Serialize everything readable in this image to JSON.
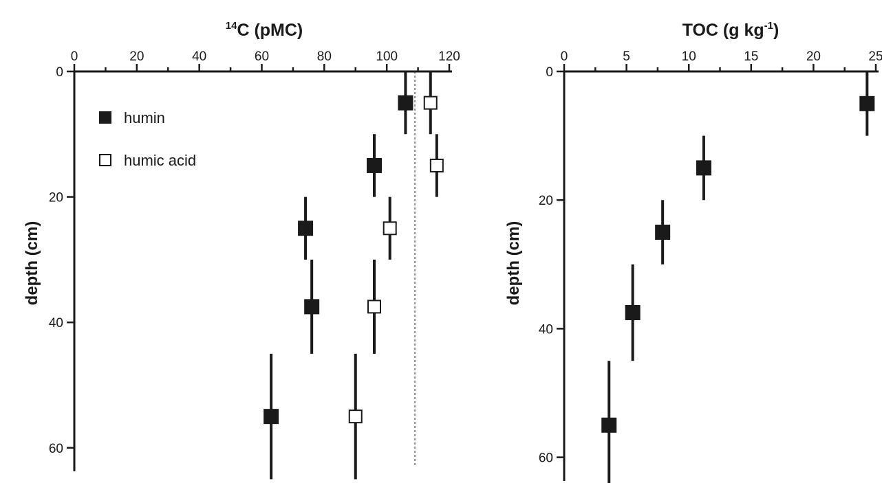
{
  "chart_data": [
    {
      "type": "scatter",
      "title": {
        "main": "C (pMC)",
        "sup": "14"
      },
      "xlabel": "",
      "ylabel": "depth (cm)",
      "x_axis_position": "top",
      "y_axis_inverted": true,
      "xlim": [
        0,
        120
      ],
      "ylim": [
        0,
        65
      ],
      "xticks": [
        0,
        20,
        40,
        60,
        80,
        100,
        120
      ],
      "yticks": [
        0,
        20,
        40,
        60
      ],
      "reference_line_x": 109,
      "legend": {
        "placement": "top-left",
        "items": [
          "humin",
          "humic acid"
        ]
      },
      "series": [
        {
          "name": "humin",
          "marker": "filled-square",
          "points": [
            {
              "x": 106,
              "y": 5,
              "y_err": [
                0,
                10
              ]
            },
            {
              "x": 96,
              "y": 15,
              "y_err": [
                10,
                20
              ]
            },
            {
              "x": 74,
              "y": 25,
              "y_err": [
                20,
                30
              ]
            },
            {
              "x": 76,
              "y": 37.5,
              "y_err": [
                30,
                45
              ]
            },
            {
              "x": 63,
              "y": 55,
              "y_err": [
                45,
                65
              ]
            }
          ]
        },
        {
          "name": "humic acid",
          "marker": "open-square",
          "points": [
            {
              "x": 114,
              "y": 5,
              "y_err": [
                0,
                10
              ]
            },
            {
              "x": 116,
              "y": 15,
              "y_err": [
                10,
                20
              ]
            },
            {
              "x": 101,
              "y": 25,
              "y_err": [
                20,
                30
              ]
            },
            {
              "x": 96,
              "y": 37.5,
              "y_err": [
                30,
                45
              ]
            },
            {
              "x": 90,
              "y": 55,
              "y_err": [
                45,
                65
              ]
            }
          ]
        }
      ]
    },
    {
      "type": "scatter",
      "title": {
        "main": "TOC (g kg",
        "sup": "-1",
        "tail": ")"
      },
      "xlabel": "",
      "ylabel": "depth (cm)",
      "x_axis_position": "top",
      "y_axis_inverted": true,
      "xlim": [
        0,
        25
      ],
      "ylim": [
        0,
        65
      ],
      "xticks": [
        0,
        5,
        10,
        15,
        20,
        25
      ],
      "yticks": [
        0,
        20,
        40,
        60
      ],
      "series": [
        {
          "name": "TOC",
          "marker": "filled-square",
          "points": [
            {
              "x": 24.3,
              "y": 5,
              "y_err": [
                0,
                10
              ]
            },
            {
              "x": 11.2,
              "y": 15,
              "y_err": [
                10,
                20
              ]
            },
            {
              "x": 7.9,
              "y": 25,
              "y_err": [
                20,
                30
              ]
            },
            {
              "x": 5.5,
              "y": 37.5,
              "y_err": [
                30,
                45
              ]
            },
            {
              "x": 3.6,
              "y": 55,
              "y_err": [
                45,
                64
              ]
            }
          ]
        }
      ]
    }
  ]
}
